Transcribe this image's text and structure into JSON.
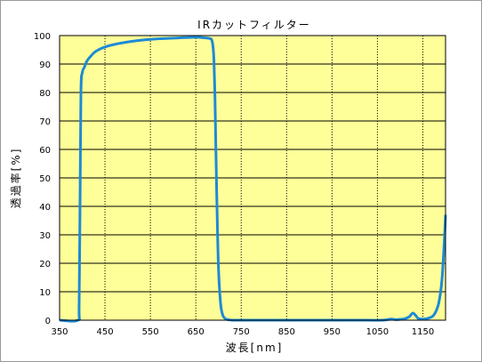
{
  "chart_data": {
    "type": "line",
    "title": "IRカットフィルター",
    "xlabel": "波長[nm]",
    "ylabel": "透過率[%]",
    "xlim": [
      350,
      1200
    ],
    "ylim": [
      0,
      100
    ],
    "x_ticks": [
      350,
      450,
      550,
      650,
      750,
      850,
      950,
      1050,
      1150
    ],
    "y_ticks": [
      0,
      10,
      20,
      30,
      40,
      50,
      60,
      70,
      80,
      90,
      100
    ],
    "grid": true,
    "grid_style": "dotted",
    "plot_background": "#ffff99",
    "line_color": "#1e8ad6",
    "series": [
      {
        "x": [
          350,
          390,
          393,
          395,
          397,
          400,
          405,
          410,
          420,
          430,
          450,
          480,
          520,
          560,
          600,
          650,
          670,
          680,
          685,
          688,
          690,
          692,
          694,
          696,
          698,
          700,
          703,
          706,
          710,
          715,
          720,
          725,
          730,
          740,
          800,
          900,
          1000,
          1060,
          1080,
          1090,
          1100,
          1110,
          1120,
          1128,
          1135,
          1140,
          1150,
          1160,
          1170,
          1175,
          1180,
          1185,
          1190,
          1193,
          1196,
          1198,
          1200
        ],
        "y": [
          0,
          0,
          5,
          40,
          80,
          87,
          89,
          91,
          93,
          94.5,
          96,
          97.2,
          98.2,
          98.8,
          99.1,
          99.4,
          99.2,
          99,
          98.5,
          96,
          91,
          80,
          62,
          45,
          30,
          18,
          9,
          4,
          1.5,
          0.5,
          0.2,
          0.1,
          0,
          0,
          0,
          0,
          0,
          0,
          0.4,
          0.2,
          0.3,
          0.5,
          1.2,
          2.5,
          1.5,
          0.6,
          0.4,
          0.6,
          1.2,
          2,
          3.5,
          6,
          11,
          16,
          24,
          30,
          37
        ]
      }
    ]
  }
}
